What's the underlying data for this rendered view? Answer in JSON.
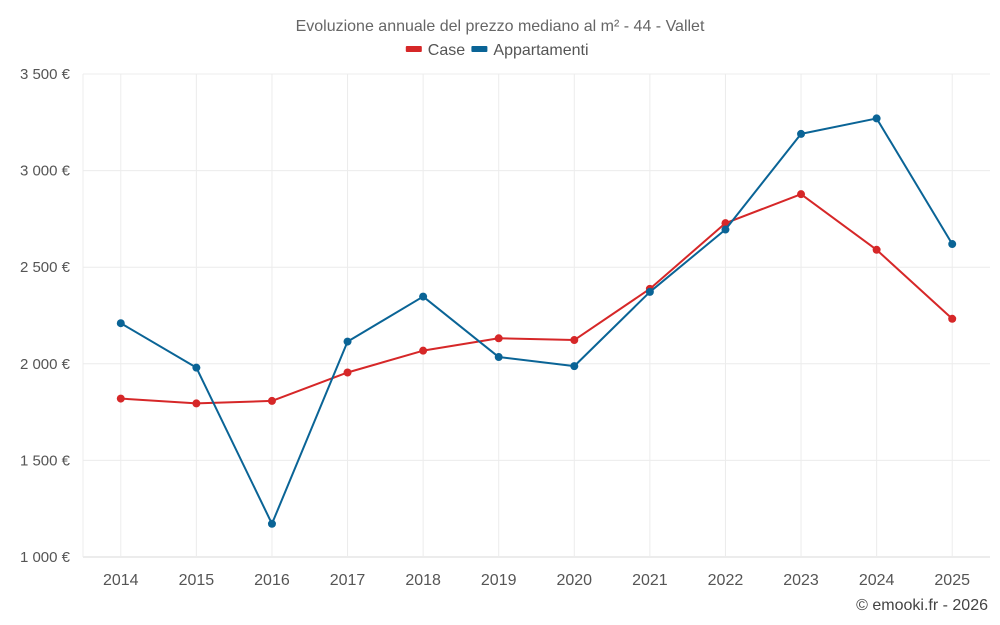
{
  "chart_data": {
    "type": "line",
    "title": "Evoluzione annuale del prezzo mediano al m² - 44 - Vallet",
    "categories": [
      "2014",
      "2015",
      "2016",
      "2017",
      "2018",
      "2019",
      "2020",
      "2021",
      "2022",
      "2023",
      "2024",
      "2025"
    ],
    "series": [
      {
        "name": "Case",
        "color": "#d62728",
        "values": [
          1820,
          1795,
          1808,
          1955,
          2068,
          2132,
          2123,
          2388,
          2728,
          2878,
          2590,
          2233
        ]
      },
      {
        "name": "Appartamenti",
        "color": "#0a6496",
        "values": [
          2210,
          1980,
          1172,
          2115,
          2348,
          2035,
          1988,
          2372,
          2695,
          3190,
          3270,
          2620
        ]
      }
    ],
    "y_ticks": [
      {
        "value": 1000,
        "label": "1 000 €"
      },
      {
        "value": 1500,
        "label": "1 500 €"
      },
      {
        "value": 2000,
        "label": "2 000 €"
      },
      {
        "value": 2500,
        "label": "2 500 €"
      },
      {
        "value": 3000,
        "label": "3 000 €"
      },
      {
        "value": 3500,
        "label": "3 500 €"
      }
    ],
    "ylim": [
      1000,
      3500
    ],
    "xlabel": "",
    "ylabel": "",
    "legend_position": "top-center",
    "grid": true
  },
  "credit": "© emooki.fr - 2026"
}
